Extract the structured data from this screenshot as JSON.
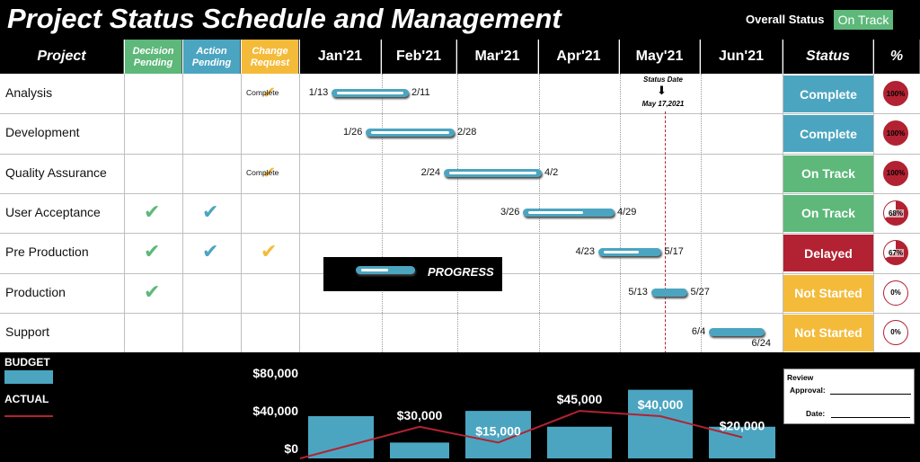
{
  "header": {
    "title": "Project Status Schedule and Management",
    "overall_status_label": "Overall Status",
    "overall_status_value": "On Track"
  },
  "columns": {
    "project": "Project",
    "decision_pending": "Decision Pending",
    "action_pending": "Action Pending",
    "change_request": "Change Request",
    "months": [
      "Jan'21",
      "Feb'21",
      "Mar'21",
      "Apr'21",
      "May'21",
      "Jun'21"
    ],
    "status": "Status",
    "percent": "%"
  },
  "status_date": {
    "label": "Status Date",
    "value": "May 17,2021"
  },
  "tasks": [
    {
      "name": "Analysis",
      "decision": false,
      "action": false,
      "change": "Complete",
      "start": "1/13",
      "end": "2/11",
      "progress": 1.0,
      "status": "Complete",
      "pct": "100%"
    },
    {
      "name": "Development",
      "decision": false,
      "action": false,
      "change": "",
      "start": "1/26",
      "end": "2/28",
      "progress": 1.0,
      "status": "Complete",
      "pct": "100%"
    },
    {
      "name": "Quality Assurance",
      "decision": false,
      "action": false,
      "change": "Complete",
      "start": "2/24",
      "end": "4/2",
      "progress": 1.0,
      "status": "On Track",
      "pct": "100%"
    },
    {
      "name": "User Acceptance",
      "decision": true,
      "action": true,
      "change": "",
      "start": "3/26",
      "end": "4/29",
      "progress": 0.68,
      "status": "On Track",
      "pct": "68%"
    },
    {
      "name": "Pre Production",
      "decision": true,
      "action": true,
      "change": "check",
      "start": "4/23",
      "end": "5/17",
      "progress": 0.67,
      "status": "Delayed",
      "pct": "67%"
    },
    {
      "name": "Production",
      "decision": true,
      "action": false,
      "change": "",
      "start": "5/13",
      "end": "5/27",
      "progress": 0,
      "status": "Not Started",
      "pct": "0%"
    },
    {
      "name": "Support",
      "decision": false,
      "action": false,
      "change": "",
      "start": "6/4",
      "end": "6/24",
      "progress": 0,
      "status": "Not Started",
      "pct": "0%"
    }
  ],
  "legend": {
    "progress_label": "PROGRESS"
  },
  "colors": {
    "complete": "#4ba5c0",
    "on_track": "#5db87a",
    "delayed": "#b22232",
    "not_started": "#f4bb3a",
    "decision_check": "#5db87a",
    "action_check": "#4ba5c0",
    "change_check": "#f4bb3a"
  },
  "icons": {
    "check": "checkmark-icon",
    "status_arrow": "arrow-down-icon"
  },
  "budget": {
    "budget_label": "BUDGET",
    "actual_label": "ACTUAL",
    "y_ticks": [
      "$80,000",
      "$40,000",
      "$0"
    ],
    "review_label": "Review",
    "approval_label": "Approval:",
    "date_label": "Date:"
  },
  "chart_data": {
    "type": "bar",
    "categories": [
      "Jan'21",
      "Feb'21",
      "Mar'21",
      "Apr'21",
      "May'21",
      "Jun'21"
    ],
    "series": [
      {
        "name": "BUDGET",
        "type": "bar",
        "values": [
          40000,
          15000,
          45000,
          30000,
          65000,
          30000
        ]
      },
      {
        "name": "ACTUAL",
        "type": "line",
        "values": [
          0,
          30000,
          15000,
          45000,
          40000,
          20000
        ]
      }
    ],
    "data_labels": [
      "$30,000",
      "$15,000",
      "$45,000",
      "$40,000",
      "$20,000"
    ],
    "ylim": [
      0,
      80000
    ],
    "y_ticks": [
      "$80,000",
      "$40,000",
      "$0"
    ]
  }
}
